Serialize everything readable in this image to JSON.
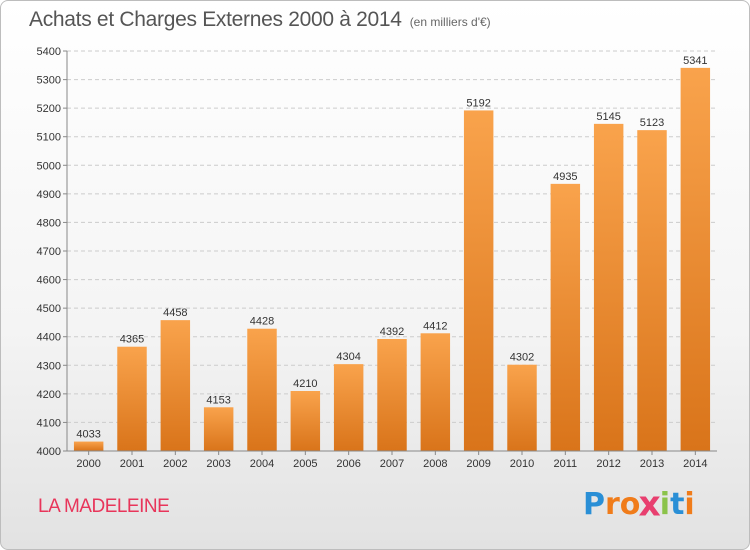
{
  "chart_data": {
    "type": "bar",
    "title": "Achats et Charges Externes 2000 à 2014",
    "subtitle": "(en milliers d'€)",
    "categories": [
      "2000",
      "2001",
      "2002",
      "2003",
      "2004",
      "2005",
      "2006",
      "2007",
      "2008",
      "2009",
      "2010",
      "2011",
      "2012",
      "2013",
      "2014"
    ],
    "values": [
      4033,
      4365,
      4458,
      4153,
      4428,
      4210,
      4304,
      4392,
      4412,
      5192,
      4302,
      4935,
      5145,
      5123,
      5341
    ],
    "ylim": [
      4000,
      5400
    ],
    "yticks": [
      4000,
      4100,
      4200,
      4300,
      4400,
      4500,
      4600,
      4700,
      4800,
      4900,
      5000,
      5100,
      5200,
      5300,
      5400
    ],
    "grid": true,
    "xlabel": "",
    "ylabel": "",
    "colors": {
      "bar_light": "#f9a34c",
      "bar_dark": "#d9741a",
      "grid": "#cccccc"
    }
  },
  "footer": {
    "city": "LA MADELEINE",
    "logo_letters": [
      "P",
      "r",
      "o",
      "x",
      "i",
      "t",
      "i"
    ],
    "logo_colors": [
      "#2a8fd6",
      "#f07c1a",
      "#f07c1a",
      "#e83f6f",
      "#8bc34a",
      "#2a8fd6",
      "#f07c1a"
    ]
  }
}
